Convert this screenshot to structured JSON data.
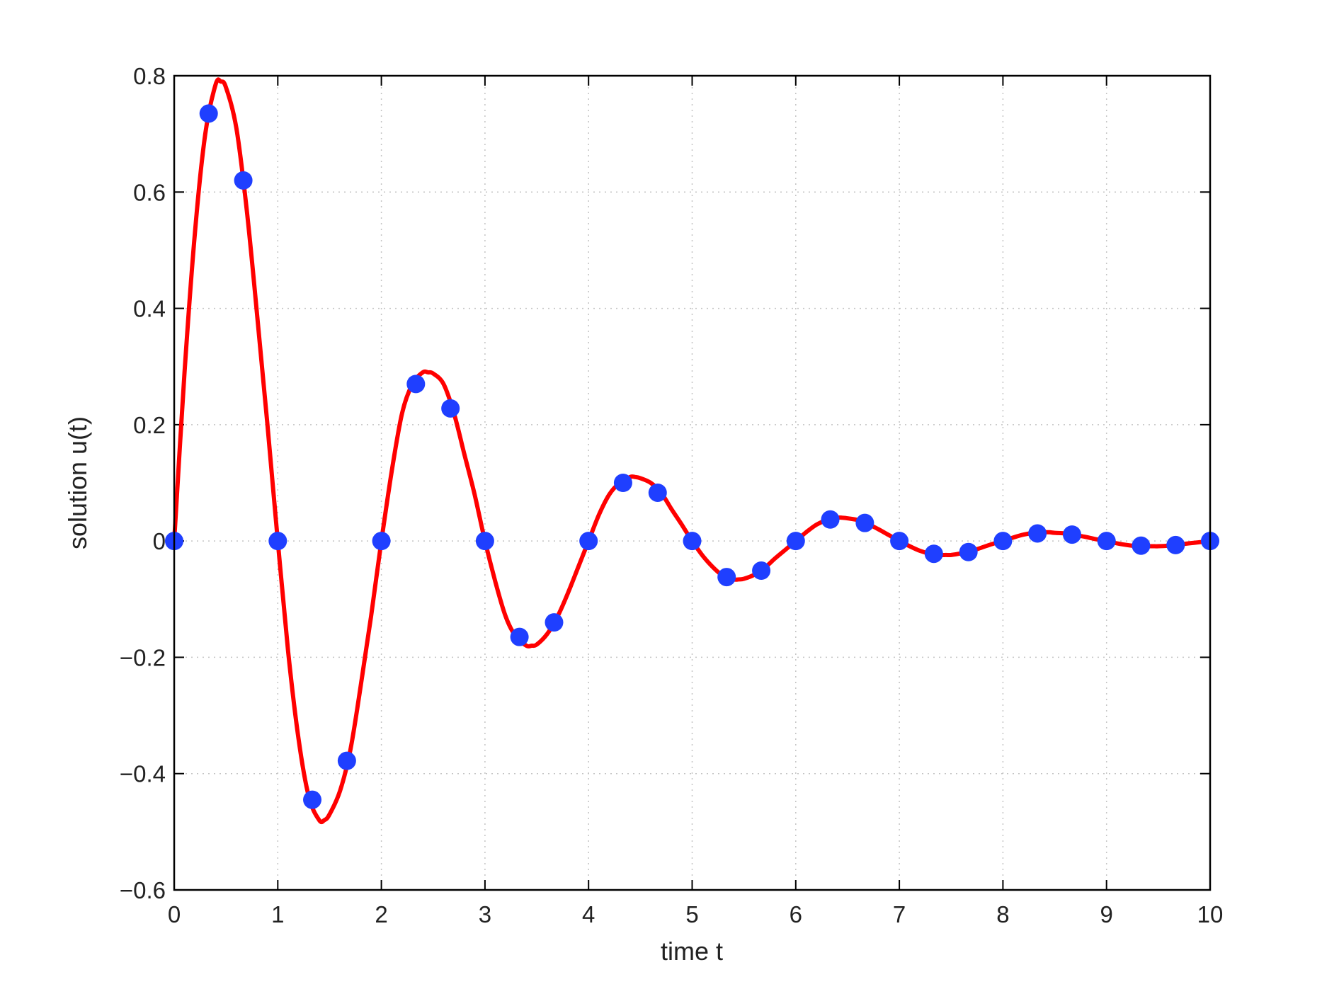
{
  "chart_data": {
    "type": "line",
    "title": "",
    "xlabel": "time t",
    "ylabel": "solution u(t)",
    "xlim": [
      0,
      10
    ],
    "ylim": [
      -0.6,
      0.8
    ],
    "xticks": [
      0,
      1,
      2,
      3,
      4,
      5,
      6,
      7,
      8,
      9,
      10
    ],
    "xtick_labels": [
      "0",
      "1",
      "2",
      "3",
      "4",
      "5",
      "6",
      "7",
      "8",
      "9",
      "10"
    ],
    "yticks": [
      -0.6,
      -0.4,
      -0.2,
      0,
      0.2,
      0.4,
      0.6,
      0.8
    ],
    "ytick_labels": [
      "−0.6",
      "−0.4",
      "−0.2",
      "0",
      "0.2",
      "0.4",
      "0.6",
      "0.8"
    ],
    "grid": true,
    "legend": "none",
    "series": [
      {
        "style": "solid-line",
        "color": "#ff0000",
        "x": [
          0,
          0.1,
          0.2,
          0.3,
          0.4,
          0.45,
          0.5,
          0.6,
          0.7,
          0.8,
          0.9,
          1.0,
          1.1,
          1.2,
          1.3,
          1.4,
          1.45,
          1.5,
          1.6,
          1.7,
          1.8,
          1.9,
          2.0,
          2.1,
          2.2,
          2.3,
          2.4,
          2.45,
          2.5,
          2.6,
          2.7,
          2.8,
          2.9,
          3.0,
          3.1,
          3.2,
          3.3,
          3.4,
          3.45,
          3.5,
          3.6,
          3.7,
          3.8,
          3.9,
          4.0,
          4.1,
          4.2,
          4.3,
          4.4,
          4.45,
          4.5,
          4.6,
          4.7,
          4.8,
          4.9,
          5.0,
          5.1,
          5.2,
          5.3,
          5.4,
          5.45,
          5.5,
          5.6,
          5.7,
          5.8,
          5.9,
          6.0,
          6.1,
          6.2,
          6.3,
          6.4,
          6.45,
          6.5,
          6.6,
          6.7,
          6.8,
          6.9,
          7.0,
          7.1,
          7.2,
          7.3,
          7.4,
          7.45,
          7.5,
          7.6,
          7.7,
          7.8,
          7.9,
          8.0,
          8.1,
          8.2,
          8.3,
          8.4,
          8.45,
          8.5,
          8.6,
          8.7,
          8.8,
          8.9,
          9.0,
          9.1,
          9.2,
          9.3,
          9.4,
          9.45,
          9.5,
          9.6,
          9.7,
          9.8,
          9.9,
          10.0
        ],
        "y": [
          0,
          0.29,
          0.53,
          0.7,
          0.785,
          0.79,
          0.78,
          0.71,
          0.57,
          0.39,
          0.2,
          0,
          -0.19,
          -0.34,
          -0.44,
          -0.48,
          -0.48,
          -0.47,
          -0.43,
          -0.36,
          -0.25,
          -0.13,
          0,
          0.12,
          0.22,
          0.27,
          0.29,
          0.29,
          0.288,
          0.27,
          0.22,
          0.15,
          0.08,
          0,
          -0.07,
          -0.13,
          -0.165,
          -0.18,
          -0.18,
          -0.178,
          -0.16,
          -0.13,
          -0.09,
          -0.045,
          0,
          0.045,
          0.08,
          0.1,
          0.11,
          0.11,
          0.108,
          0.1,
          0.083,
          0.055,
          0.028,
          0,
          -0.025,
          -0.045,
          -0.06,
          -0.066,
          -0.066,
          -0.065,
          -0.058,
          -0.046,
          -0.03,
          -0.015,
          0,
          0.015,
          0.028,
          0.036,
          0.04,
          0.04,
          0.039,
          0.036,
          0.029,
          0.02,
          0.01,
          0,
          -0.009,
          -0.017,
          -0.022,
          -0.024,
          -0.024,
          -0.024,
          -0.021,
          -0.017,
          -0.011,
          -0.005,
          0,
          0.006,
          0.011,
          0.014,
          0.015,
          0.015,
          0.014,
          0.013,
          0.01,
          0.007,
          0.003,
          0,
          -0.004,
          -0.007,
          -0.009,
          -0.009,
          -0.009,
          -0.009,
          -0.008,
          -0.006,
          -0.004,
          -0.002,
          0
        ]
      },
      {
        "style": "markers",
        "color": "#1f3fff",
        "x": [
          0,
          0.333,
          0.667,
          1.0,
          1.333,
          1.667,
          2.0,
          2.333,
          2.667,
          3.0,
          3.333,
          3.667,
          4.0,
          4.333,
          4.667,
          5.0,
          5.333,
          5.667,
          6.0,
          6.333,
          6.667,
          7.0,
          7.333,
          7.667,
          8.0,
          8.333,
          8.667,
          9.0,
          9.333,
          9.667,
          10.0
        ],
        "y": [
          0,
          0.735,
          0.62,
          0,
          -0.445,
          -0.378,
          0,
          0.27,
          0.228,
          0,
          -0.165,
          -0.14,
          0,
          0.1,
          0.083,
          0,
          -0.062,
          -0.051,
          0,
          0.037,
          0.031,
          0,
          -0.022,
          -0.019,
          0,
          0.013,
          0.011,
          0,
          -0.008,
          -0.007,
          0
        ]
      }
    ]
  }
}
